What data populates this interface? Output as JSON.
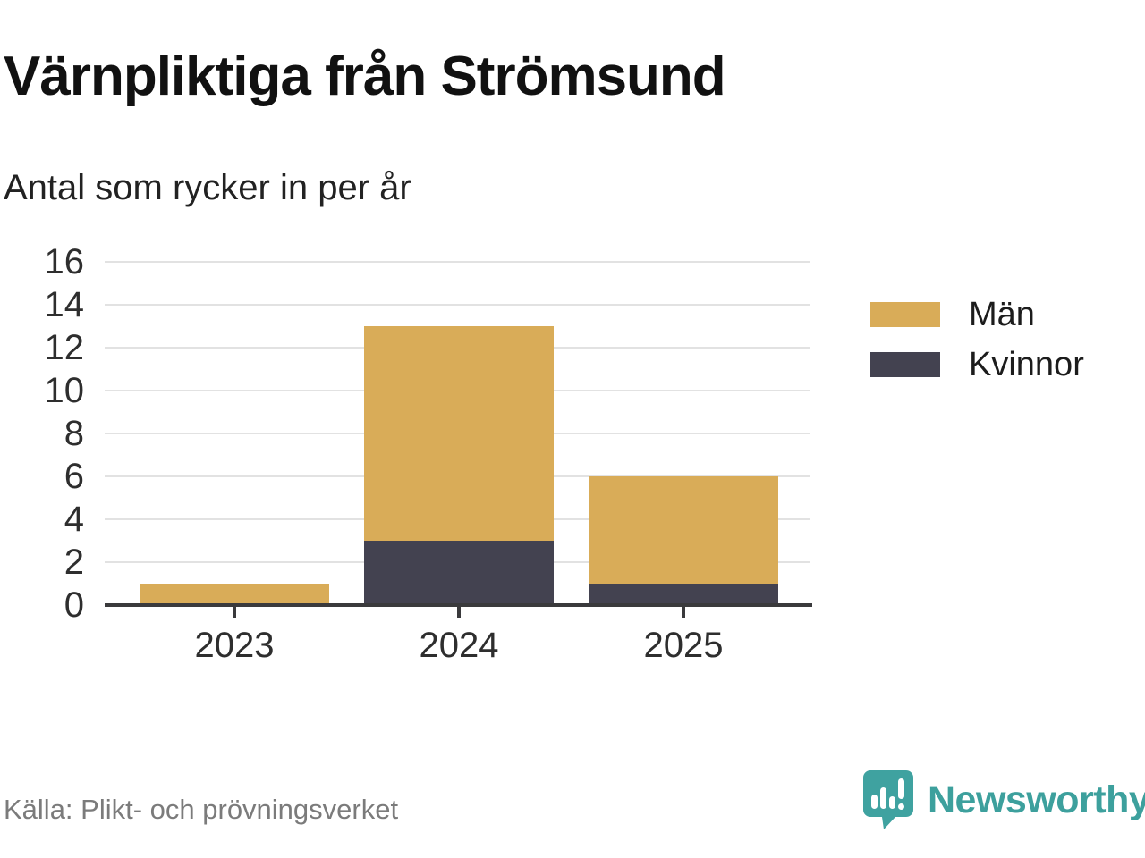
{
  "header": {
    "title": "Värnpliktiga från Strömsund",
    "subtitle": "Antal som rycker in per år"
  },
  "chart_data": {
    "type": "bar",
    "stacked": true,
    "title": "Värnpliktiga från Strömsund",
    "subtitle": "Antal som rycker in per år",
    "categories": [
      "2023",
      "2024",
      "2025"
    ],
    "series": [
      {
        "name": "Kvinnor",
        "color": "#434250",
        "values": [
          0,
          3,
          1
        ]
      },
      {
        "name": "Män",
        "color": "#d9ac58",
        "values": [
          1,
          10,
          5
        ]
      }
    ],
    "totals": [
      1,
      13,
      6
    ],
    "xlabel": "",
    "ylabel": "",
    "ylim": [
      0,
      16
    ],
    "yticks": [
      0,
      2,
      4,
      6,
      8,
      10,
      12,
      14,
      16
    ],
    "grid": "horizontal",
    "grid_color": "#e2e2e2",
    "axis_color": "#3a3a3c",
    "legend_position": "right"
  },
  "legend": {
    "items": [
      {
        "label": "Män",
        "color": "#d9ac58"
      },
      {
        "label": "Kvinnor",
        "color": "#434250"
      }
    ]
  },
  "source": {
    "label": "Källa: Plikt- och prövningsverket"
  },
  "branding": {
    "name": "Newsworthy",
    "color": "#3da09d"
  }
}
